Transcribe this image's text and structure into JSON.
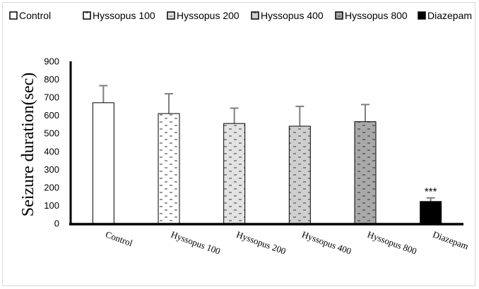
{
  "chart_data": {
    "type": "bar",
    "title": "",
    "xlabel": "",
    "ylabel": "Seizure duration(sec)",
    "ylim": [
      0,
      900
    ],
    "yticks": [
      0,
      100,
      200,
      300,
      400,
      500,
      600,
      700,
      800,
      900
    ],
    "grid": false,
    "legend_position": "top",
    "categories": [
      "Control",
      "Hyssopus 100",
      "Hyssopus 200",
      "Hyssopus 400",
      "Hyssopus 800",
      "Diazepam"
    ],
    "values": [
      670,
      610,
      555,
      540,
      565,
      122
    ],
    "error": [
      95,
      110,
      85,
      110,
      95,
      20
    ],
    "annotations": [
      {
        "category": "Diazepam",
        "text": "***"
      }
    ],
    "legend": [
      "Control",
      "Hyssopus 100",
      "Hyssopus 200",
      "Hyssopus 400",
      "Hyssopus 800",
      "Diazepam"
    ],
    "fills": [
      {
        "bg": "#ffffff",
        "pattern": "none"
      },
      {
        "bg": "#ffffff",
        "pattern": "dash",
        "mark": "#555555"
      },
      {
        "bg": "#e3e3e3",
        "pattern": "dash",
        "mark": "#555555"
      },
      {
        "bg": "#cfcfcf",
        "pattern": "dash",
        "mark": "#555555"
      },
      {
        "bg": "#a9a9a9",
        "pattern": "dash",
        "mark": "#444444"
      },
      {
        "bg": "#000000",
        "pattern": "none"
      }
    ],
    "bar_stroke": "#000000",
    "error_color": "#808080"
  }
}
